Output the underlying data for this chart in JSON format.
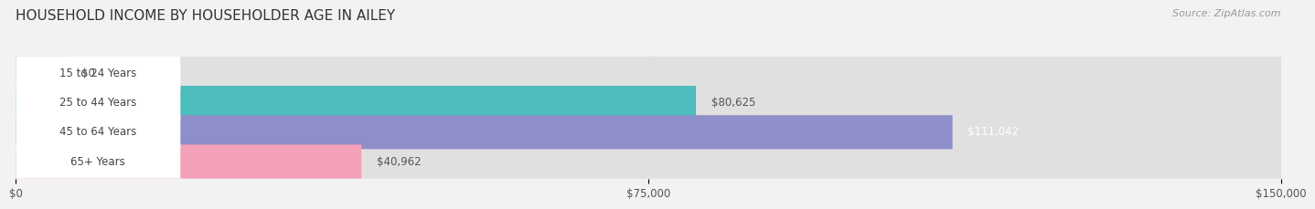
{
  "title": "HOUSEHOLD INCOME BY HOUSEHOLDER AGE IN AILEY",
  "source": "Source: ZipAtlas.com",
  "categories": [
    "15 to 24 Years",
    "25 to 44 Years",
    "45 to 64 Years",
    "65+ Years"
  ],
  "values": [
    0,
    80625,
    111042,
    40962
  ],
  "bar_colors": [
    "#c8a8d8",
    "#4cbcbc",
    "#8e8ec8",
    "#f4a0b8"
  ],
  "bar_label_colors": [
    "#555555",
    "#555555",
    "#ffffff",
    "#555555"
  ],
  "labels": [
    "$0",
    "$80,625",
    "$111,042",
    "$40,962"
  ],
  "xlim": [
    0,
    150000
  ],
  "xticks": [
    0,
    75000,
    150000
  ],
  "xtick_labels": [
    "$0",
    "$75,000",
    "$150,000"
  ],
  "background_color": "#f2f2f2",
  "bar_bg_color": "#e0e0e0",
  "title_fontsize": 11,
  "source_fontsize": 8,
  "label_fontsize": 8.5,
  "cat_fontsize": 8.5,
  "tick_fontsize": 8.5,
  "bar_height": 0.58,
  "fig_width": 14.06,
  "fig_height": 2.33
}
